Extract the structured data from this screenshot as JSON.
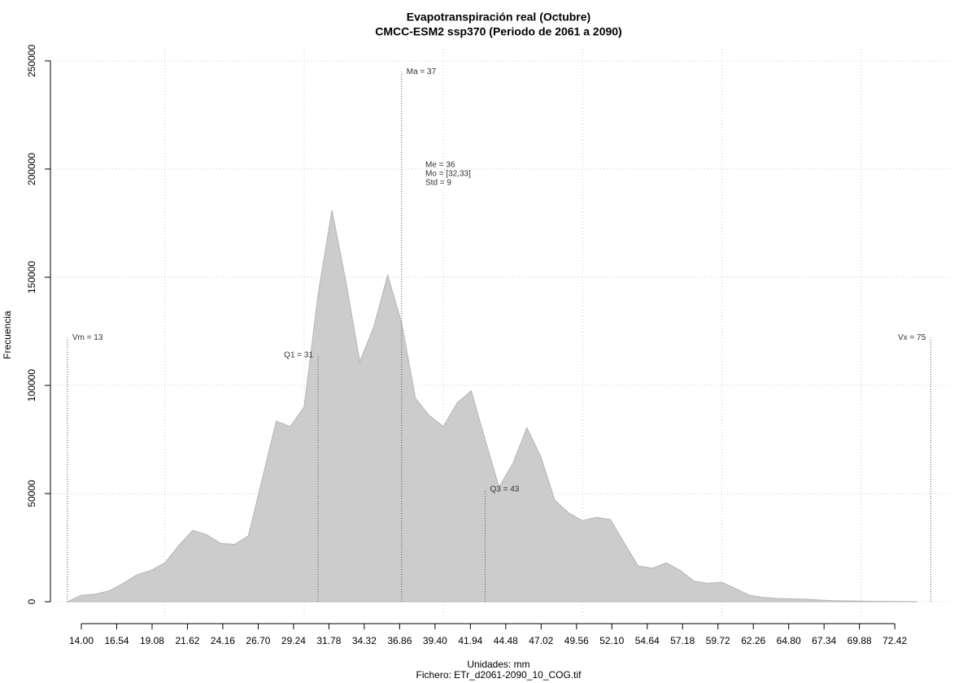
{
  "chart_data": {
    "type": "area",
    "title": "Evapotranspiración real (Octubre)",
    "subtitle": "CMCC-ESM2 ssp370 (Periodo de 2061 a 2090)",
    "xlabel": "Unidades: mm",
    "caption": "Fichero: ETr_d2061-2090_10_COG.tif",
    "ylabel": "Frecuencia",
    "color": "#cccccc",
    "x": [
      13,
      14,
      15,
      16,
      17,
      18,
      19,
      20,
      21,
      22,
      23,
      24,
      25,
      26,
      27,
      28,
      29,
      30,
      31,
      32,
      33,
      34,
      35,
      36,
      37,
      38,
      39,
      40,
      41,
      42,
      43,
      44,
      45,
      46,
      47,
      48,
      49,
      50,
      51,
      52,
      53,
      54,
      55,
      56,
      57,
      58,
      59,
      60,
      61,
      62,
      63,
      64,
      65,
      66,
      67,
      68,
      69,
      70,
      71,
      72,
      73,
      74
    ],
    "values": [
      0,
      3000,
      3500,
      5000,
      8500,
      12500,
      14500,
      18000,
      26000,
      33000,
      31000,
      27000,
      26500,
      30500,
      57000,
      83500,
      81000,
      90000,
      142000,
      181000,
      148000,
      111000,
      127000,
      151000,
      129000,
      94000,
      86000,
      81000,
      92000,
      97500,
      75000,
      53000,
      64000,
      80500,
      67000,
      47000,
      41000,
      37500,
      39000,
      38000,
      27000,
      16500,
      15500,
      18000,
      14500,
      9500,
      8500,
      9000,
      6000,
      3000,
      2000,
      1500,
      1300,
      1200,
      800,
      500,
      400,
      300,
      200,
      150,
      100,
      50
    ],
    "xlim": [
      11.78,
      76.5
    ],
    "ylim": [
      -7500,
      255600
    ],
    "xticks": [
      {
        "value": 14,
        "label": "14.00"
      },
      {
        "value": 16.54,
        "label": "16.54"
      },
      {
        "value": 19.08,
        "label": "19.08"
      },
      {
        "value": 21.62,
        "label": "21.62"
      },
      {
        "value": 24.16,
        "label": "24.16"
      },
      {
        "value": 26.7,
        "label": "26.70"
      },
      {
        "value": 29.24,
        "label": "29.24"
      },
      {
        "value": 31.78,
        "label": "31.78"
      },
      {
        "value": 34.32,
        "label": "34.32"
      },
      {
        "value": 36.86,
        "label": "36.86"
      },
      {
        "value": 39.4,
        "label": "39.40"
      },
      {
        "value": 41.94,
        "label": "41.94"
      },
      {
        "value": 44.48,
        "label": "44.48"
      },
      {
        "value": 47.02,
        "label": "47.02"
      },
      {
        "value": 49.56,
        "label": "49.56"
      },
      {
        "value": 52.1,
        "label": "52.10"
      },
      {
        "value": 54.64,
        "label": "54.64"
      },
      {
        "value": 57.18,
        "label": "57.18"
      },
      {
        "value": 59.72,
        "label": "59.72"
      },
      {
        "value": 62.26,
        "label": "62.26"
      },
      {
        "value": 64.8,
        "label": "64.80"
      },
      {
        "value": 67.34,
        "label": "67.34"
      },
      {
        "value": 69.88,
        "label": "69.88"
      },
      {
        "value": 72.42,
        "label": "72.42"
      }
    ],
    "yticks": [
      0,
      50000,
      100000,
      150000,
      200000,
      250000
    ],
    "xgrid": [
      20,
      30,
      40,
      50,
      60,
      70
    ],
    "grid": true,
    "annotations": [
      {
        "label": "Vm = 13",
        "x": 13,
        "y": 122000,
        "label_side": "right"
      },
      {
        "label": "Q1 = 31",
        "x": 31,
        "y": 114000,
        "label_side": "left"
      },
      {
        "label": "Ma = 37",
        "x": 37,
        "y": 245000,
        "label_side": "right"
      },
      {
        "label": "Q3 = 43",
        "x": 43,
        "y": 52000,
        "label_side": "right"
      },
      {
        "label": "Vx = 75",
        "x": 75,
        "y": 122000,
        "label_side": "left"
      }
    ],
    "stats": [
      "Me = 36",
      "Mo = [32,33]",
      "Std = 9"
    ]
  }
}
